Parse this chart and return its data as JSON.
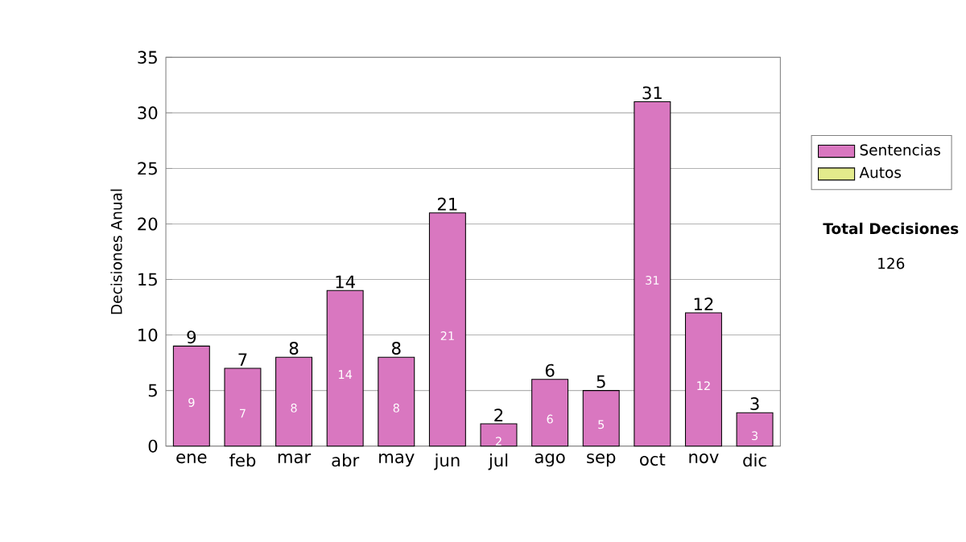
{
  "chart_data": {
    "type": "bar",
    "stacked": true,
    "ylabel": "Decisiones Anual",
    "categories": [
      "ene",
      "feb",
      "mar",
      "abr",
      "may",
      "jun",
      "jul",
      "ago",
      "sep",
      "oct",
      "nov",
      "dic"
    ],
    "series": [
      {
        "name": "Sentencias",
        "color": "#d977c0",
        "values": [
          9,
          7,
          8,
          14,
          8,
          21,
          2,
          6,
          5,
          31,
          12,
          3
        ]
      },
      {
        "name": "Autos",
        "color": "#e3eb8c",
        "values": [
          null,
          null,
          null,
          null,
          null,
          null,
          null,
          null,
          null,
          null,
          null,
          null
        ]
      }
    ],
    "totals": [
      "9",
      "7",
      "8",
      "14",
      "8",
      "21",
      "2",
      "6",
      "5",
      "31",
      "12",
      "3"
    ],
    "data_labels": true,
    "ylim": [
      0,
      35
    ],
    "yticks": [
      0,
      5,
      10,
      15,
      20,
      25,
      30,
      35
    ],
    "grid": "y",
    "legend": "right",
    "annotations": [
      "Total Decisiones",
      "126"
    ]
  }
}
